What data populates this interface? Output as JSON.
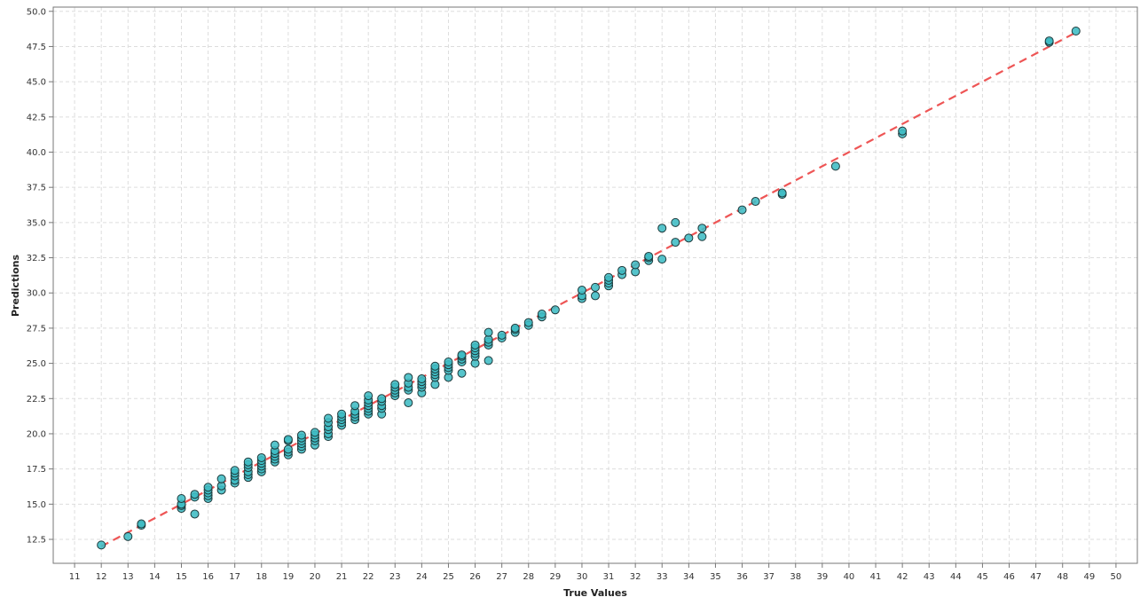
{
  "chart_data": {
    "type": "scatter",
    "title": "",
    "xlabel": "True Values",
    "ylabel": "Predictions",
    "xlim": [
      10.2,
      50.8
    ],
    "ylim": [
      10.8,
      50.3
    ],
    "x_ticks": [
      "11",
      "12",
      "13",
      "14",
      "15",
      "16",
      "17",
      "18",
      "19",
      "20",
      "21",
      "22",
      "23",
      "24",
      "25",
      "26",
      "27",
      "28",
      "29",
      "30",
      "31",
      "32",
      "33",
      "34",
      "35",
      "36",
      "37",
      "38",
      "39",
      "40",
      "41",
      "42",
      "43",
      "44",
      "45",
      "46",
      "47",
      "48",
      "49",
      "50"
    ],
    "y_ticks": [
      "12.5",
      "15.0",
      "17.5",
      "20.0",
      "22.5",
      "25.0",
      "27.5",
      "30.0",
      "32.5",
      "35.0",
      "37.5",
      "40.0",
      "42.5",
      "45.0",
      "47.5",
      "50.0"
    ],
    "grid": true,
    "colors": {
      "points": "#3fbcc4",
      "point_edge": "#1e3a3c",
      "reference_line": "#ee5555",
      "grid": "#dddddd",
      "frame": "#777777"
    },
    "reference_line": {
      "style": "dashed",
      "from": [
        12,
        12
      ],
      "to": [
        48.5,
        48.5
      ]
    },
    "points": [
      [
        12,
        12.1
      ],
      [
        13,
        12.7
      ],
      [
        13.5,
        13.5
      ],
      [
        13.5,
        13.6
      ],
      [
        15,
        14.7
      ],
      [
        15,
        14.9
      ],
      [
        15,
        15.0
      ],
      [
        15,
        15.4
      ],
      [
        15.5,
        14.3
      ],
      [
        15.5,
        15.5
      ],
      [
        15.5,
        15.7
      ],
      [
        16,
        15.4
      ],
      [
        16,
        15.6
      ],
      [
        16,
        15.8
      ],
      [
        16,
        16.0
      ],
      [
        16,
        16.2
      ],
      [
        16.5,
        16.0
      ],
      [
        16.5,
        16.3
      ],
      [
        16.5,
        16.8
      ],
      [
        17,
        16.5
      ],
      [
        17,
        16.7
      ],
      [
        17,
        17.0
      ],
      [
        17,
        17.2
      ],
      [
        17,
        17.4
      ],
      [
        17.5,
        16.9
      ],
      [
        17.5,
        17.1
      ],
      [
        17.5,
        17.3
      ],
      [
        17.5,
        17.6
      ],
      [
        17.5,
        17.8
      ],
      [
        17.5,
        18.0
      ],
      [
        18,
        17.3
      ],
      [
        18,
        17.5
      ],
      [
        18,
        17.7
      ],
      [
        18,
        17.9
      ],
      [
        18,
        18.1
      ],
      [
        18,
        18.3
      ],
      [
        18.5,
        18.0
      ],
      [
        18.5,
        18.2
      ],
      [
        18.5,
        18.4
      ],
      [
        18.5,
        18.6
      ],
      [
        18.5,
        18.8
      ],
      [
        18.5,
        19.2
      ],
      [
        19,
        18.5
      ],
      [
        19,
        18.7
      ],
      [
        19,
        18.9
      ],
      [
        19,
        19.5
      ],
      [
        19,
        19.6
      ],
      [
        19.5,
        18.9
      ],
      [
        19.5,
        19.1
      ],
      [
        19.5,
        19.3
      ],
      [
        19.5,
        19.5
      ],
      [
        19.5,
        19.7
      ],
      [
        19.5,
        19.9
      ],
      [
        20,
        19.2
      ],
      [
        20,
        19.5
      ],
      [
        20,
        19.7
      ],
      [
        20,
        19.9
      ],
      [
        20,
        20.1
      ],
      [
        20.5,
        19.8
      ],
      [
        20.5,
        20.0
      ],
      [
        20.5,
        20.3
      ],
      [
        20.5,
        20.5
      ],
      [
        20.5,
        20.8
      ],
      [
        20.5,
        21.1
      ],
      [
        21,
        20.6
      ],
      [
        21,
        20.8
      ],
      [
        21,
        21.0
      ],
      [
        21,
        21.2
      ],
      [
        21,
        21.4
      ],
      [
        21.5,
        21.0
      ],
      [
        21.5,
        21.2
      ],
      [
        21.5,
        21.4
      ],
      [
        21.5,
        21.6
      ],
      [
        21.5,
        22.0
      ],
      [
        22,
        21.4
      ],
      [
        22,
        21.6
      ],
      [
        22,
        21.8
      ],
      [
        22,
        22.0
      ],
      [
        22,
        22.2
      ],
      [
        22,
        22.4
      ],
      [
        22,
        22.7
      ],
      [
        22.5,
        21.4
      ],
      [
        22.5,
        21.8
      ],
      [
        22.5,
        22.0
      ],
      [
        22.5,
        22.3
      ],
      [
        22.5,
        22.5
      ],
      [
        23,
        22.7
      ],
      [
        23,
        22.9
      ],
      [
        23,
        23.1
      ],
      [
        23,
        23.3
      ],
      [
        23,
        23.5
      ],
      [
        23.5,
        22.2
      ],
      [
        23.5,
        23.1
      ],
      [
        23.5,
        23.3
      ],
      [
        23.5,
        23.6
      ],
      [
        23.5,
        24.0
      ],
      [
        24,
        22.9
      ],
      [
        24,
        23.3
      ],
      [
        24,
        23.5
      ],
      [
        24,
        23.7
      ],
      [
        24,
        23.9
      ],
      [
        24.5,
        23.5
      ],
      [
        24.5,
        24.0
      ],
      [
        24.5,
        24.2
      ],
      [
        24.5,
        24.4
      ],
      [
        24.5,
        24.6
      ],
      [
        24.5,
        24.8
      ],
      [
        25,
        24.0
      ],
      [
        25,
        24.5
      ],
      [
        25,
        24.7
      ],
      [
        25,
        24.9
      ],
      [
        25,
        25.1
      ],
      [
        25.5,
        24.3
      ],
      [
        25.5,
        25.1
      ],
      [
        25.5,
        25.3
      ],
      [
        25.5,
        25.5
      ],
      [
        25.5,
        25.6
      ],
      [
        26,
        25.0
      ],
      [
        26,
        25.5
      ],
      [
        26,
        25.7
      ],
      [
        26,
        25.9
      ],
      [
        26,
        26.1
      ],
      [
        26,
        26.3
      ],
      [
        26.5,
        25.2
      ],
      [
        26.5,
        26.3
      ],
      [
        26.5,
        26.5
      ],
      [
        26.5,
        26.7
      ],
      [
        26.5,
        27.2
      ],
      [
        27,
        26.8
      ],
      [
        27,
        27.0
      ],
      [
        27.5,
        27.2
      ],
      [
        27.5,
        27.4
      ],
      [
        27.5,
        27.5
      ],
      [
        28,
        27.7
      ],
      [
        28,
        27.9
      ],
      [
        28.5,
        28.3
      ],
      [
        28.5,
        28.5
      ],
      [
        29,
        28.8
      ],
      [
        30,
        29.6
      ],
      [
        30,
        29.8
      ],
      [
        30,
        30.2
      ],
      [
        30.5,
        29.8
      ],
      [
        30.5,
        30.4
      ],
      [
        31,
        30.5
      ],
      [
        31,
        30.7
      ],
      [
        31,
        30.9
      ],
      [
        31,
        31.1
      ],
      [
        31.5,
        31.3
      ],
      [
        31.5,
        31.6
      ],
      [
        32,
        31.5
      ],
      [
        32,
        32.0
      ],
      [
        32.5,
        32.3
      ],
      [
        32.5,
        32.5
      ],
      [
        32.5,
        32.6
      ],
      [
        33,
        32.4
      ],
      [
        33,
        34.6
      ],
      [
        33.5,
        33.6
      ],
      [
        33.5,
        35.0
      ],
      [
        34,
        33.9
      ],
      [
        34.5,
        34.0
      ],
      [
        34.5,
        34.6
      ],
      [
        36,
        35.9
      ],
      [
        36.5,
        36.5
      ],
      [
        37.5,
        37.0
      ],
      [
        37.5,
        37.1
      ],
      [
        39.5,
        39.0
      ],
      [
        42,
        41.3
      ],
      [
        42,
        41.5
      ],
      [
        47.5,
        47.8
      ],
      [
        47.5,
        47.9
      ],
      [
        48.5,
        48.6
      ]
    ]
  }
}
